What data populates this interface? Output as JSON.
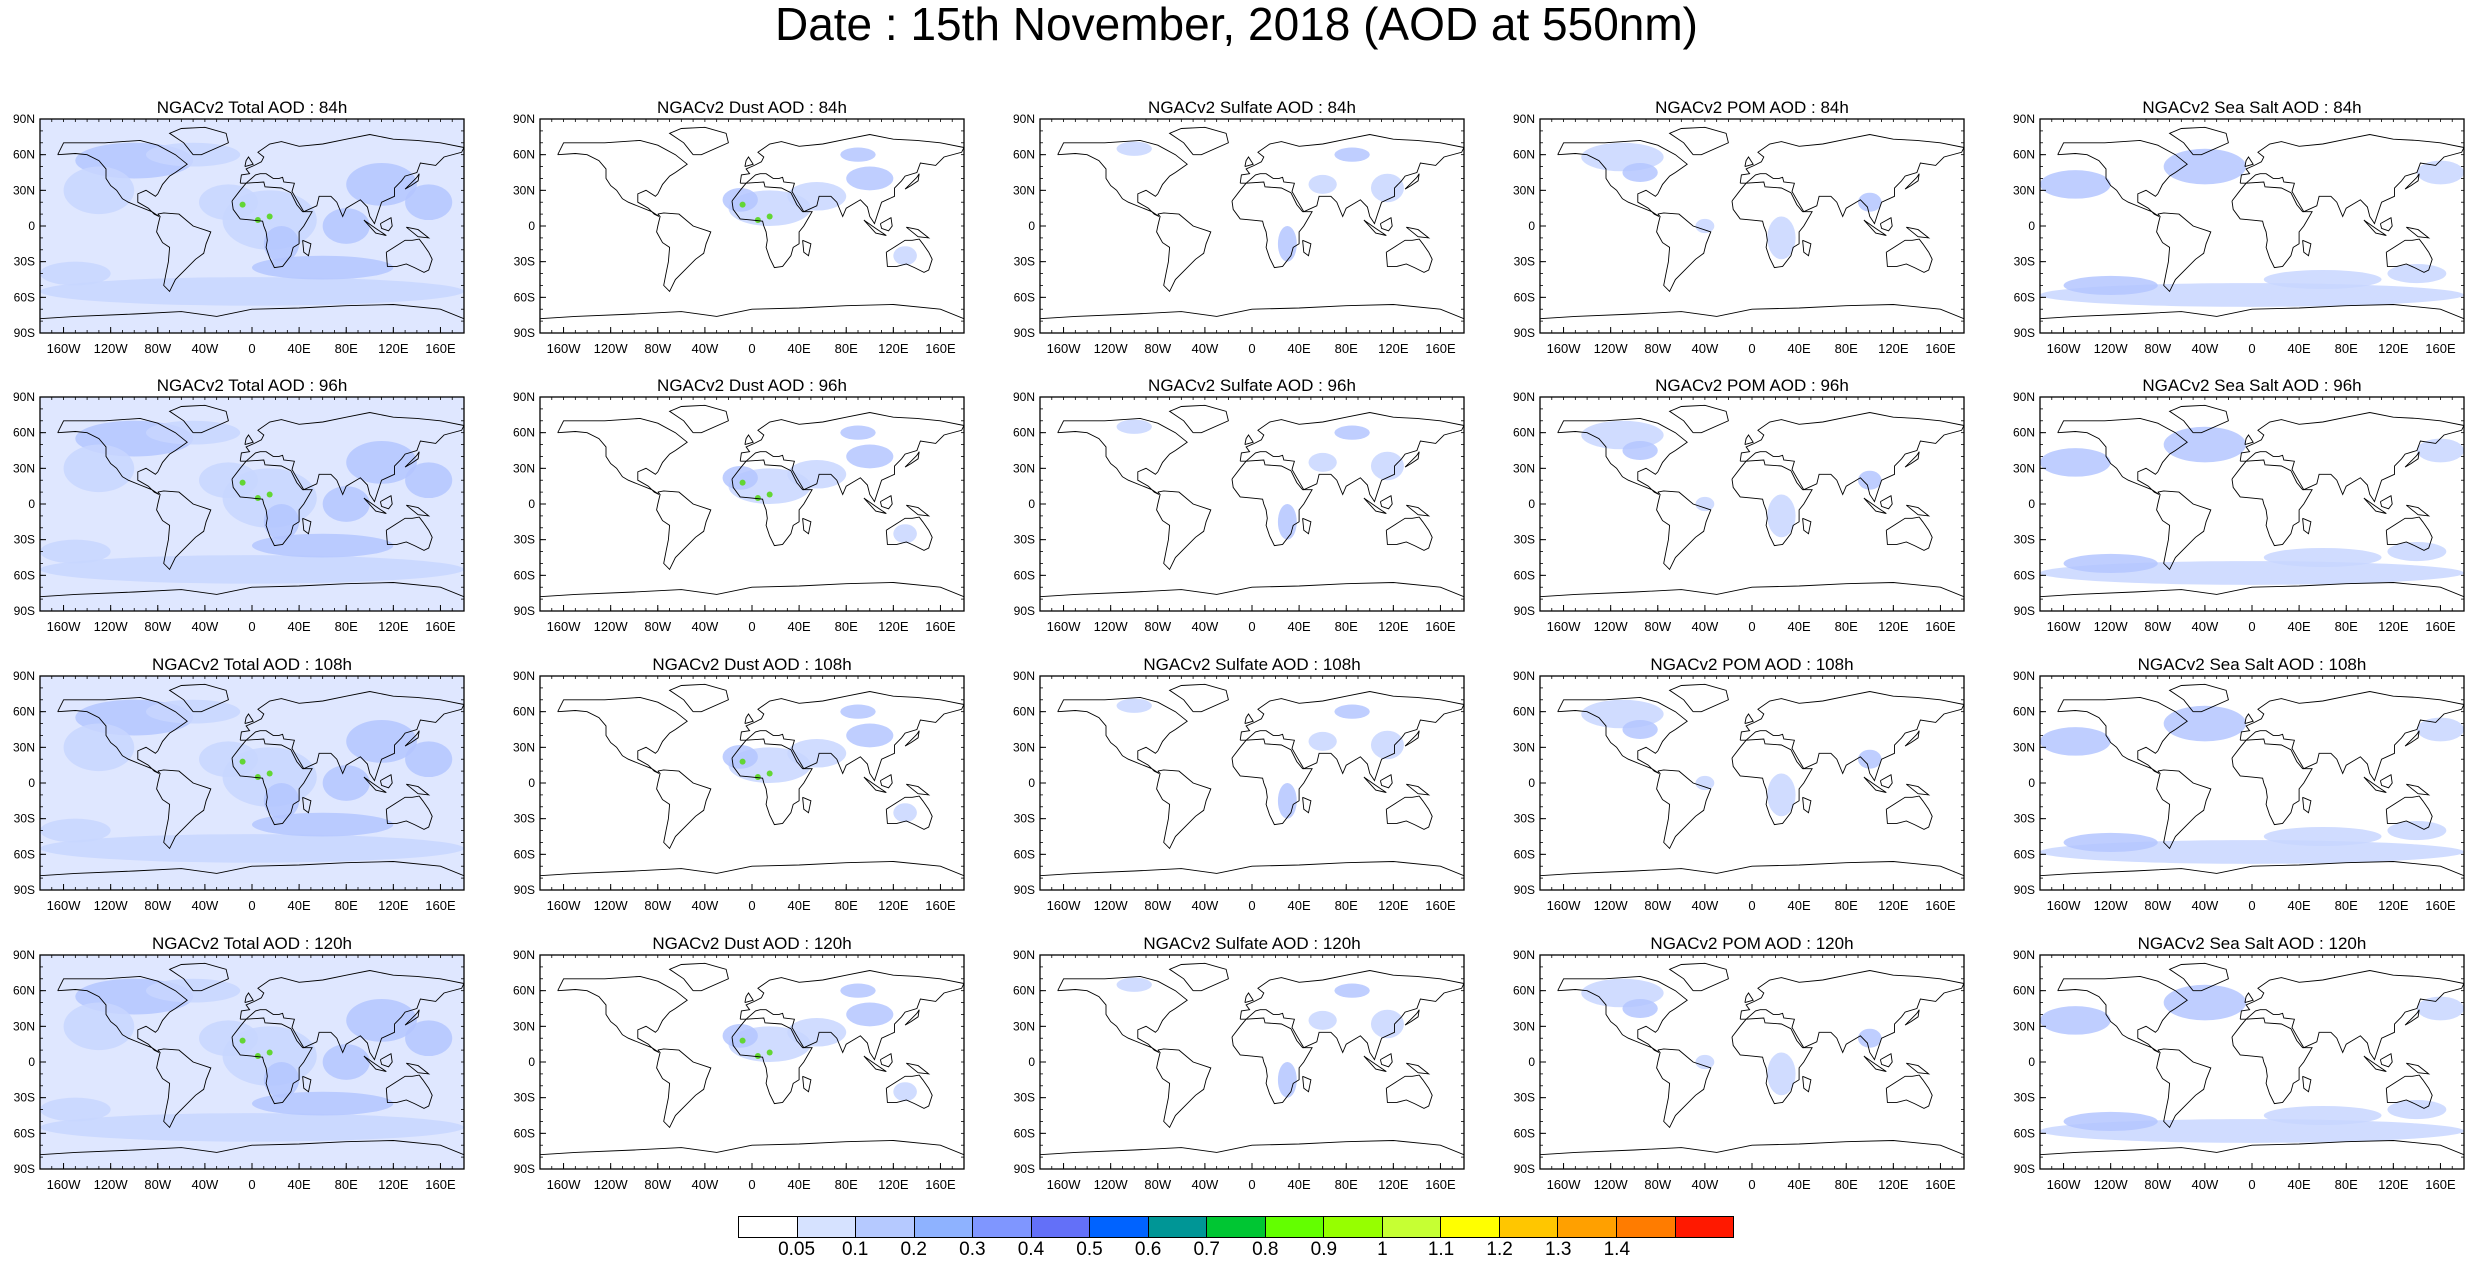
{
  "title": "Date : 15th November, 2018 (AOD at 550nm)",
  "lat_labels": [
    "90N",
    "60N",
    "30N",
    "0",
    "30S",
    "60S",
    "90S"
  ],
  "lon_labels": [
    "160W",
    "120W",
    "80W",
    "40W",
    "0",
    "40E",
    "80E",
    "120E",
    "160E"
  ],
  "panel_titles": [
    [
      "NGACv2 Total AOD : 84h",
      "NGACv2 Dust AOD : 84h",
      "NGACv2 Sulfate AOD : 84h",
      "NGACv2 POM AOD : 84h",
      "NGACv2 Sea Salt AOD : 84h"
    ],
    [
      "NGACv2 Total AOD : 96h",
      "NGACv2 Dust AOD : 96h",
      "NGACv2 Sulfate AOD : 96h",
      "NGACv2 POM AOD : 96h",
      "NGACv2 Sea Salt AOD : 96h"
    ],
    [
      "NGACv2 Total AOD : 108h",
      "NGACv2 Dust AOD : 108h",
      "NGACv2 Sulfate AOD : 108h",
      "NGACv2 POM AOD : 108h",
      "NGACv2 Sea Salt AOD : 108h"
    ],
    [
      "NGACv2 Total AOD : 120h",
      "NGACv2 Dust AOD : 120h",
      "NGACv2 Sulfate AOD : 120h",
      "NGACv2 POM AOD : 120h",
      "NGACv2 Sea Salt  AOD : 120h"
    ]
  ],
  "colorbar": {
    "labels": [
      "0.05",
      "0.1",
      "0.2",
      "0.3",
      "0.4",
      "0.5",
      "0.6",
      "0.7",
      "0.8",
      "0.9",
      "1",
      "1.1",
      "1.2",
      "1.3",
      "1.4"
    ],
    "colors": [
      "#ffffff",
      "#d6e2ff",
      "#b5c9ff",
      "#8eb2ff",
      "#7f96ff",
      "#6370f8",
      "#0063ff",
      "#009696",
      "#00c633",
      "#63ff00",
      "#96ff00",
      "#c6ff33",
      "#ffff00",
      "#ffc600",
      "#ffa000",
      "#ff7c00",
      "#ff1900"
    ]
  }
}
